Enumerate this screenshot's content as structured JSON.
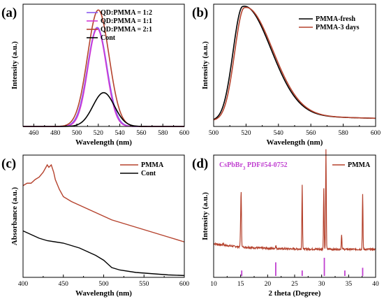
{
  "chart_data": [
    {
      "id": "a",
      "type": "line",
      "panel_label": "(a)",
      "xlabel": "Wavelength (nm)",
      "ylabel": "Intensity (a.u.)",
      "xlim": [
        450,
        600
      ],
      "ylim": [
        0,
        1.05
      ],
      "xticks": [
        460,
        480,
        500,
        520,
        540,
        560,
        580,
        600
      ],
      "yticks_shown": false,
      "legend_position": "top-right",
      "series": [
        {
          "name": "QD:PMMA = 1:2",
          "color": "#8a5cf0",
          "peak": 519,
          "amplitude": 0.85,
          "width": 9
        },
        {
          "name": "QD:PMMA = 1:1",
          "color": "#d03ad6",
          "peak": 519,
          "amplitude": 0.84,
          "width": 8.6
        },
        {
          "name": "QD:PMMA = 2:1",
          "color": "#b5422d",
          "peak": 520,
          "amplitude": 1.0,
          "width": 10
        },
        {
          "name": "Cont",
          "color": "#000000",
          "peak": 525,
          "amplitude": 0.29,
          "width": 10
        }
      ]
    },
    {
      "id": "b",
      "type": "line",
      "panel_label": "(b)",
      "xlabel": "Wavelength (nm)",
      "ylabel": "Intensity (a.u.)",
      "xlim": [
        500,
        600
      ],
      "ylim": [
        0,
        1.05
      ],
      "xticks": [
        500,
        520,
        540,
        560,
        580,
        600
      ],
      "yticks_shown": false,
      "legend_position": "top-right",
      "series": [
        {
          "name": "PMMA-fresh",
          "color": "#000000",
          "peak": 518,
          "amplitude": 0.98
        },
        {
          "name": "PMMA-3 days",
          "color": "#b5422d",
          "peak": 519,
          "amplitude": 0.97
        }
      ]
    },
    {
      "id": "c",
      "type": "line",
      "panel_label": "(c)",
      "xlabel": "Wavelength (nm)",
      "ylabel": "Absorbance (a.u.)",
      "xlim": [
        400,
        600
      ],
      "ylim": [
        0,
        1
      ],
      "xticks": [
        400,
        450,
        500,
        550,
        600
      ],
      "yticks_shown": false,
      "legend_position": "top-right",
      "series": [
        {
          "name": "PMMA",
          "color": "#b5422d",
          "x": [
            400,
            405,
            410,
            415,
            420,
            425,
            430,
            432,
            435,
            438,
            440,
            445,
            450,
            460,
            470,
            480,
            490,
            500,
            510,
            520,
            540,
            560,
            580,
            600
          ],
          "y": [
            0.75,
            0.77,
            0.77,
            0.8,
            0.82,
            0.86,
            0.92,
            0.9,
            0.92,
            0.86,
            0.8,
            0.72,
            0.66,
            0.62,
            0.59,
            0.56,
            0.53,
            0.5,
            0.47,
            0.45,
            0.41,
            0.37,
            0.33,
            0.29
          ]
        },
        {
          "name": "Cont",
          "color": "#000000",
          "x": [
            400,
            410,
            420,
            430,
            440,
            450,
            460,
            470,
            480,
            490,
            500,
            505,
            510,
            520,
            540,
            560,
            580,
            600
          ],
          "y": [
            0.38,
            0.35,
            0.32,
            0.3,
            0.29,
            0.28,
            0.26,
            0.24,
            0.21,
            0.18,
            0.14,
            0.11,
            0.08,
            0.06,
            0.04,
            0.03,
            0.02,
            0.015
          ]
        }
      ]
    },
    {
      "id": "d",
      "type": "line",
      "panel_label": "(d)",
      "xlabel": "2 theta (Degree)",
      "ylabel": "Intensity (a.u.)",
      "xlim": [
        10,
        40
      ],
      "ylim": [
        0,
        1.05
      ],
      "xticks": [
        10,
        15,
        20,
        25,
        30,
        35,
        40
      ],
      "yticks_shown": false,
      "legend_position": "top-right",
      "reference_label": "CsPbBr3 PDF#54-0752",
      "reference_label_parts": [
        "CsPbBr",
        "3",
        " PDF#54-0752"
      ],
      "reference_color": "#c040d0",
      "reference_lines": [
        {
          "x": 15.2,
          "h": 0.3
        },
        {
          "x": 21.5,
          "h": 0.75
        },
        {
          "x": 26.4,
          "h": 0.3
        },
        {
          "x": 30.5,
          "h": 1.0
        },
        {
          "x": 34.3,
          "h": 0.3
        },
        {
          "x": 37.6,
          "h": 0.45
        }
      ],
      "series": [
        {
          "name": "PMMA",
          "color": "#b5422d",
          "baseline": 0.24,
          "peaks": [
            {
              "x": 11.8,
              "h": 0.02
            },
            {
              "x": 15.1,
              "h": 0.42
            },
            {
              "x": 15.0,
              "h": 0.18
            },
            {
              "x": 21.5,
              "h": 0.03
            },
            {
              "x": 26.4,
              "h": 0.55
            },
            {
              "x": 30.4,
              "h": 0.52
            },
            {
              "x": 30.8,
              "h": 0.86
            },
            {
              "x": 33.7,
              "h": 0.13
            },
            {
              "x": 37.6,
              "h": 0.47
            }
          ]
        }
      ]
    }
  ]
}
